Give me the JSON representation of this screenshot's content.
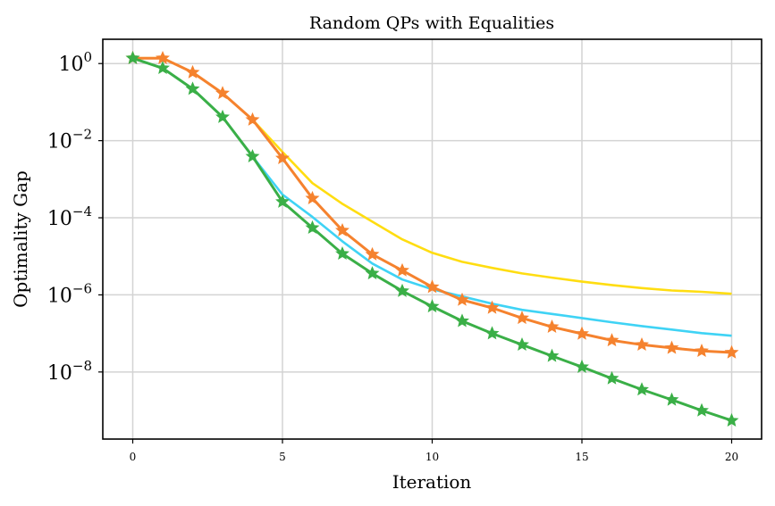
{
  "chart_data": {
    "type": "line",
    "title": "Random QPs with Equalities",
    "xlabel": "Iteration",
    "ylabel": "Optimality Gap",
    "yscale": "log",
    "xlim": [
      -1,
      21
    ],
    "ylim_log10": [
      -9.74,
      0.63
    ],
    "xticks": [
      0,
      5,
      10,
      15,
      20
    ],
    "ytick_exponents": [
      0,
      -2,
      -4,
      -6,
      -8
    ],
    "grid": true,
    "x": [
      0,
      1,
      2,
      3,
      4,
      5,
      6,
      7,
      8,
      9,
      10,
      11,
      12,
      13,
      14,
      15,
      16,
      17,
      18,
      19,
      20
    ],
    "series": [
      {
        "color": "#FFDD11",
        "marker": "none",
        "values": [
          1.38,
          1.38,
          0.59,
          0.17,
          0.035,
          0.0051,
          0.00079,
          0.00023,
          7.9e-05,
          2.75e-05,
          1.23e-05,
          7.2e-06,
          5e-06,
          3.6e-06,
          2.8e-06,
          2.2e-06,
          1.8e-06,
          1.5e-06,
          1.3e-06,
          1.2e-06,
          1.07e-06
        ]
      },
      {
        "color": "#3FD3F5",
        "marker": "none",
        "values": [
          1.38,
          0.76,
          0.22,
          0.041,
          0.0039,
          0.0004,
          0.000105,
          2.45e-05,
          6.5e-06,
          2.5e-06,
          1.4e-06,
          9.1e-07,
          5.9e-07,
          4.1e-07,
          3.2e-07,
          2.5e-07,
          1.95e-07,
          1.55e-07,
          1.26e-07,
          1.02e-07,
          8.7e-08
        ]
      },
      {
        "color": "#F5822E",
        "marker": "star",
        "values": [
          1.38,
          1.38,
          0.59,
          0.17,
          0.035,
          0.0035,
          0.00032,
          4.7e-05,
          1.12e-05,
          4.3e-06,
          1.6e-06,
          7.4e-07,
          4.6e-07,
          2.5e-07,
          1.48e-07,
          9.8e-08,
          6.6e-08,
          5.1e-08,
          4.2e-08,
          3.5e-08,
          3.2e-08
        ]
      },
      {
        "color": "#3AAF47",
        "marker": "star",
        "values": [
          1.38,
          0.76,
          0.22,
          0.041,
          0.0039,
          0.00026,
          5.5e-05,
          1.17e-05,
          3.6e-06,
          1.26e-06,
          5e-07,
          2.1e-07,
          1e-07,
          5.1e-08,
          2.6e-08,
          1.35e-08,
          6.8e-09,
          3.5e-09,
          1.9e-09,
          1e-09,
          5.5e-10
        ]
      }
    ]
  }
}
